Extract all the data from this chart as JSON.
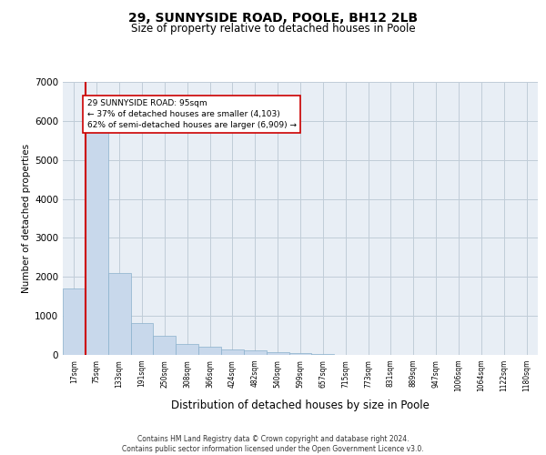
{
  "title": "29, SUNNYSIDE ROAD, POOLE, BH12 2LB",
  "subtitle": "Size of property relative to detached houses in Poole",
  "xlabel": "Distribution of detached houses by size in Poole",
  "ylabel": "Number of detached properties",
  "bar_color": "#c8d8eb",
  "bar_edge_color": "#8ab0cc",
  "grid_color": "#c0ccd8",
  "bg_color": "#e8eef5",
  "categories": [
    "17sqm",
    "75sqm",
    "133sqm",
    "191sqm",
    "250sqm",
    "308sqm",
    "366sqm",
    "424sqm",
    "482sqm",
    "540sqm",
    "599sqm",
    "657sqm",
    "715sqm",
    "773sqm",
    "831sqm",
    "889sqm",
    "947sqm",
    "1006sqm",
    "1064sqm",
    "1122sqm",
    "1180sqm"
  ],
  "values": [
    1700,
    5900,
    2100,
    820,
    500,
    280,
    210,
    140,
    110,
    80,
    55,
    30,
    5,
    3,
    2,
    1,
    0,
    0,
    0,
    0,
    0
  ],
  "vline_x": 0.5,
  "vline_color": "#cc0000",
  "annotation_text": "29 SUNNYSIDE ROAD: 95sqm\n← 37% of detached houses are smaller (4,103)\n62% of semi-detached houses are larger (6,909) →",
  "annotation_box_color": "#ffffff",
  "annotation_border_color": "#cc0000",
  "ylim": [
    0,
    7000
  ],
  "yticks": [
    0,
    1000,
    2000,
    3000,
    4000,
    5000,
    6000,
    7000
  ],
  "footer_line1": "Contains HM Land Registry data © Crown copyright and database right 2024.",
  "footer_line2": "Contains public sector information licensed under the Open Government Licence v3.0."
}
